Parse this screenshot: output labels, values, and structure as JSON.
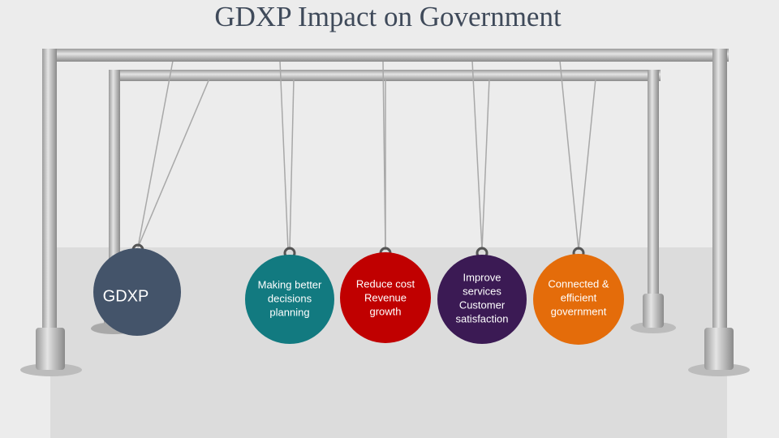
{
  "title": "GDXP Impact on Government",
  "balls": [
    {
      "lines": [
        "GDXP"
      ]
    },
    {
      "lines": [
        "Making better",
        "decisions",
        "planning"
      ]
    },
    {
      "lines": [
        "Reduce cost",
        "Revenue",
        "growth"
      ]
    },
    {
      "lines": [
        "Improve",
        "services",
        "Customer",
        "satisfaction"
      ]
    },
    {
      "lines": [
        "Connected &",
        "efficient",
        "government"
      ]
    }
  ]
}
